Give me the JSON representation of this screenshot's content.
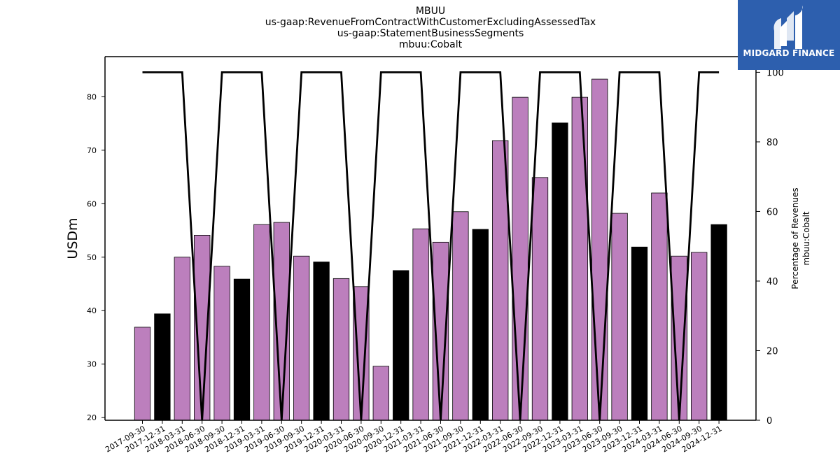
{
  "title_lines": [
    "MBUU",
    "us-gaap:RevenueFromContractWithCustomerExcludingAssessedTax",
    "us-gaap:StatementBusinessSegments",
    "mbuu:Cobalt"
  ],
  "logo": {
    "text": "MIDGARD FINANCE",
    "color": "#2d5fae"
  },
  "chart_data": {
    "type": "bar",
    "ylabel": "USDm",
    "y2label_lines": [
      "Percentage of Revenues",
      "mbuu:Cobalt"
    ],
    "ylim": [
      19.5,
      87.5
    ],
    "y2lim": [
      0,
      104.5
    ],
    "yticks": [
      20,
      30,
      40,
      50,
      60,
      70,
      80
    ],
    "y2ticks": [
      0,
      20,
      40,
      60,
      80,
      100
    ],
    "colors": {
      "quarter_bar": "#bc7fbd",
      "year_end_bar": "#000000",
      "line": "#000000"
    },
    "categories": [
      "2017-09-30",
      "2017-12-31",
      "2018-03-31",
      "2018-06-30",
      "2018-09-30",
      "2018-12-31",
      "2019-03-31",
      "2019-06-30",
      "2019-09-30",
      "2019-12-31",
      "2020-03-31",
      "2020-06-30",
      "2020-09-30",
      "2020-12-31",
      "2021-03-31",
      "2021-06-30",
      "2021-09-30",
      "2021-12-31",
      "2022-03-31",
      "2022-06-30",
      "2022-09-30",
      "2022-12-31",
      "2023-03-31",
      "2023-06-30",
      "2023-09-30",
      "2023-12-31",
      "2024-03-31",
      "2024-06-30",
      "2024-09-30",
      "2024-12-31"
    ],
    "series": [
      {
        "values": [
          36.9,
          39.4,
          50.0,
          54.1,
          48.3,
          45.9,
          56.1,
          56.5,
          50.2,
          49.1,
          46.0,
          44.5,
          29.6,
          47.5,
          55.3,
          52.8,
          58.5,
          55.2,
          71.8,
          79.9,
          64.9,
          75.1,
          79.9,
          83.3,
          58.2,
          51.9,
          62.0,
          50.2,
          50.9,
          56.1
        ]
      },
      {
        "values": [
          100,
          100,
          100,
          0,
          100,
          100,
          100,
          0,
          100,
          100,
          100,
          0,
          100,
          100,
          100,
          0,
          100,
          100,
          100,
          0,
          100,
          100,
          100,
          0,
          100,
          100,
          100,
          0,
          100,
          100
        ]
      }
    ]
  }
}
